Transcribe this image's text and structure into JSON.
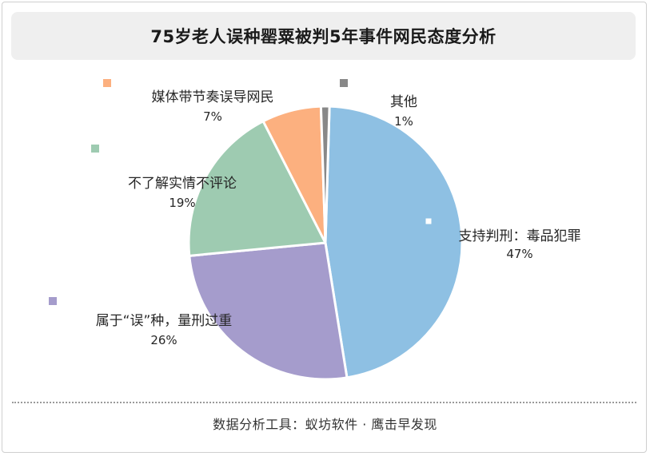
{
  "page": {
    "title": "75岁老人误种罂粟被判5年事件网民态度分析",
    "footer": "数据分析工具：蚁坊软件 · 鹰击早发现"
  },
  "chart_data": {
    "type": "pie",
    "title": "75岁老人误种罂粟被判5年事件网民态度分析",
    "legend": "none",
    "slices": [
      {
        "name": "支持判刑：毒品犯罪",
        "label": "47%",
        "value": 47,
        "color": "#8ec0e3"
      },
      {
        "name": "属于“误”种，量刑过重",
        "label": "26%",
        "value": 26,
        "color": "#a59ccc"
      },
      {
        "name": "不了解实情不评论",
        "label": "19%",
        "value": 19,
        "color": "#9ecbb1"
      },
      {
        "name": "媒体带节奏误导网民",
        "label": "7%",
        "value": 7,
        "color": "#fcb07f"
      },
      {
        "name": "其他",
        "label": "1%",
        "value": 1,
        "color": "#888888"
      }
    ]
  }
}
